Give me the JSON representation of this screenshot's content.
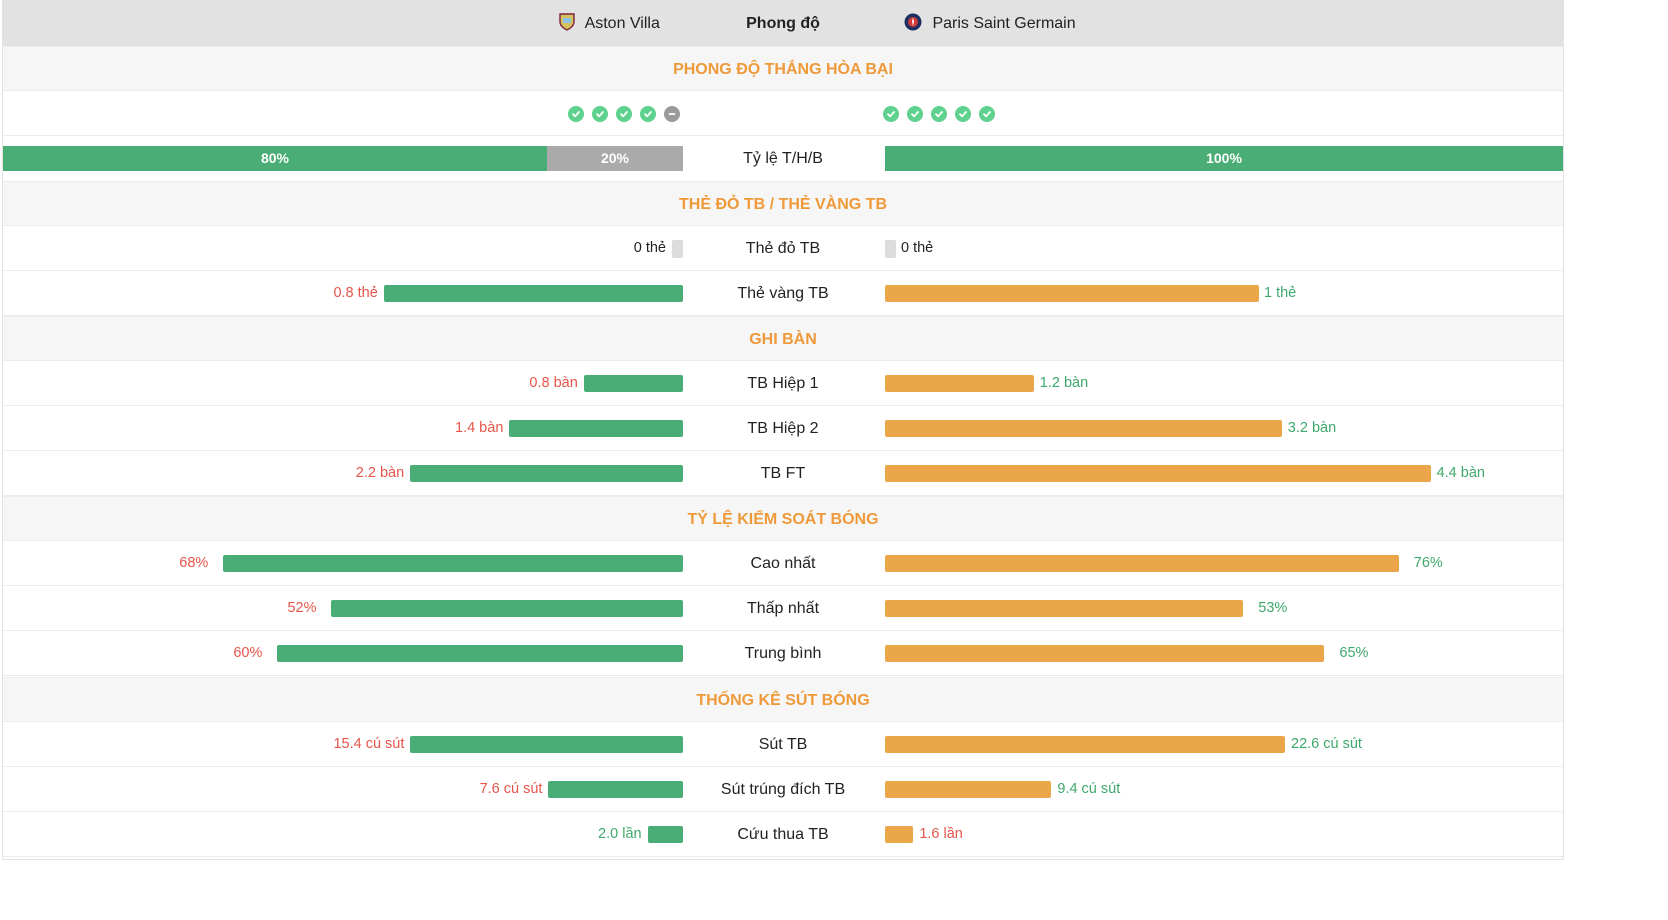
{
  "header": {
    "home_team": "Aston Villa",
    "title": "Phong độ",
    "away_team": "Paris Saint Germain"
  },
  "form": {
    "section_title": "PHONG ĐỘ THẮNG HÒA BẠI",
    "home_results": [
      "W",
      "W",
      "W",
      "W",
      "D"
    ],
    "away_results": [
      "W",
      "W",
      "W",
      "W",
      "W"
    ],
    "ratio_label": "Tỷ lệ T/H/B",
    "home_win_pct": "80%",
    "home_draw_pct": "20%",
    "home_win_share": 80,
    "home_draw_share": 20,
    "away_win_pct": "100%",
    "away_win_share": 100
  },
  "cards": {
    "section_title": "THẺ ĐỎ TB / THẺ VÀNG TB",
    "red_label": "Thẻ đỏ TB",
    "home_red": "0 thẻ",
    "away_red": "0 thẻ",
    "yellow_label": "Thẻ vàng TB",
    "home_yellow": "0.8 thẻ",
    "away_yellow": "1 thẻ",
    "home_yellow_value": 0.8,
    "away_yellow_value": 1
  },
  "goals": {
    "section_title": "GHI BÀN",
    "rows": [
      {
        "label": "TB Hiệp 1",
        "home": "0.8 bàn",
        "away": "1.2 bàn",
        "home_value": 0.8,
        "away_value": 1.2
      },
      {
        "label": "TB Hiệp 2",
        "home": "1.4 bàn",
        "away": "3.2 bàn",
        "home_value": 1.4,
        "away_value": 3.2
      },
      {
        "label": "TB FT",
        "home": "2.2 bàn",
        "away": "4.4 bàn",
        "home_value": 2.2,
        "away_value": 4.4
      }
    ]
  },
  "possession": {
    "section_title": "TỶ LỆ KIỂM SOÁT BÓNG",
    "rows": [
      {
        "label": "Cao nhất",
        "home": "68%",
        "away": "76%",
        "home_value": 68,
        "away_value": 76
      },
      {
        "label": "Thấp nhất",
        "home": "52%",
        "away": "53%",
        "home_value": 52,
        "away_value": 53
      },
      {
        "label": "Trung bình",
        "home": "60%",
        "away": "65%",
        "home_value": 60,
        "away_value": 65
      }
    ]
  },
  "shots": {
    "section_title": "THỐNG KÊ SÚT BÓNG",
    "rows": [
      {
        "label": "Sút TB",
        "home": "15.4 cú sút",
        "away": "22.6 cú sút",
        "home_value": 15.4,
        "away_value": 22.6
      },
      {
        "label": "Sút trúng đích TB",
        "home": "7.6 cú sút",
        "away": "9.4 cú sút",
        "home_value": 7.6,
        "away_value": 9.4
      },
      {
        "label": "Cứu thua TB",
        "home": "2.0 lần",
        "away": "1.6 lần",
        "home_value": 2.0,
        "away_value": 1.6
      }
    ]
  },
  "colors": {
    "home_bar": "#4aad76",
    "away_bar": "#eca64a",
    "section_title": "#ee9a3a",
    "better_value": "#3fa86b",
    "worse_value": "#e5554a"
  }
}
